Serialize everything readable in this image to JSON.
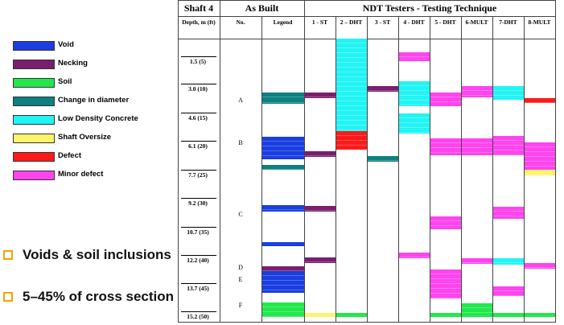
{
  "legend": [
    {
      "label": "Void",
      "color": "#1a3ee0"
    },
    {
      "label": "Necking",
      "color": "#7a1e6e"
    },
    {
      "label": "Soil",
      "color": "#22e84c"
    },
    {
      "label": "Change in diameter",
      "color": "#0e8080"
    },
    {
      "label": "Low Density Concrete",
      "color": "#22f4f4"
    },
    {
      "label": "Shaft Oversize",
      "color": "#fff36a"
    },
    {
      "label": "Defect",
      "color": "#ff1a1a"
    },
    {
      "label": "Minor defect",
      "color": "#ff44ee"
    }
  ],
  "bullets": [
    {
      "text": "Voids & soil inclusions"
    },
    {
      "text": "5–45% of cross section"
    }
  ],
  "table": {
    "shaft_header": "Shaft 4",
    "as_built_header": "As Built",
    "ndt_header": "NDT Testers - Testing Technique",
    "depth_header": "Depth, m (ft)",
    "no_header": "No.",
    "legend_header": "Legend",
    "tester_headers": [
      "1 - ST",
      "2 – DHT",
      "3 - ST",
      "4 - DHT",
      "5 - DHT",
      "6-MULT",
      "7-DHT",
      "8-MULT"
    ],
    "depths": [
      "1.5 (5)",
      "3.0 (10)",
      "4.6 (15)",
      "6.1 (20)",
      "7.7 (25)",
      "9.2 (30)",
      "10.7 (35)",
      "12.2 (40)",
      "13.7 (45)",
      "15.2 (50)"
    ],
    "sections": [
      {
        "label": "A",
        "depth_m": 3.4
      },
      {
        "label": "B",
        "depth_m": 5.7
      },
      {
        "label": "C",
        "depth_m": 9.6
      },
      {
        "label": "D",
        "depth_m": 12.5
      },
      {
        "label": "E",
        "depth_m": 13.2
      },
      {
        "label": "F",
        "depth_m": 14.6
      }
    ],
    "columns": [
      {
        "name": "as-built-legend",
        "segments": [
          {
            "from": 2.95,
            "to": 3.25,
            "kind": "change-diameter"
          },
          {
            "from": 3.25,
            "to": 3.55,
            "kind": "change-diameter"
          },
          {
            "from": 5.35,
            "to": 6.6,
            "kind": "void"
          },
          {
            "from": 6.9,
            "to": 7.15,
            "kind": "change-diameter"
          },
          {
            "from": 9.1,
            "to": 9.45,
            "kind": "void"
          },
          {
            "from": 11.1,
            "to": 11.35,
            "kind": "void"
          },
          {
            "from": 12.45,
            "to": 12.7,
            "kind": "necking"
          },
          {
            "from": 12.7,
            "to": 13.9,
            "kind": "void"
          },
          {
            "from": 14.4,
            "to": 15.2,
            "kind": "soil"
          }
        ]
      },
      {
        "name": "tester-1",
        "segments": [
          {
            "from": 2.95,
            "to": 3.25,
            "kind": "necking"
          },
          {
            "from": 6.15,
            "to": 6.45,
            "kind": "necking"
          },
          {
            "from": 9.15,
            "to": 9.45,
            "kind": "necking"
          },
          {
            "from": 11.95,
            "to": 12.25,
            "kind": "necking"
          },
          {
            "from": 15.0,
            "to": 15.2,
            "kind": "oversize"
          }
        ]
      },
      {
        "name": "tester-2",
        "segments": [
          {
            "from": 0.0,
            "to": 5.05,
            "kind": "low-density"
          },
          {
            "from": 5.05,
            "to": 6.05,
            "kind": "defect"
          },
          {
            "from": 15.0,
            "to": 15.2,
            "kind": "soil"
          }
        ]
      },
      {
        "name": "tester-3",
        "segments": [
          {
            "from": 2.6,
            "to": 2.9,
            "kind": "necking"
          },
          {
            "from": 6.4,
            "to": 6.7,
            "kind": "change-diameter"
          }
        ]
      },
      {
        "name": "tester-4",
        "segments": [
          {
            "from": 0.75,
            "to": 1.25,
            "kind": "minor"
          },
          {
            "from": 2.35,
            "to": 3.7,
            "kind": "low-density"
          },
          {
            "from": 4.1,
            "to": 5.2,
            "kind": "low-density"
          },
          {
            "from": 11.7,
            "to": 12.0,
            "kind": "minor"
          }
        ]
      },
      {
        "name": "tester-5",
        "segments": [
          {
            "from": 2.95,
            "to": 3.7,
            "kind": "minor"
          },
          {
            "from": 5.45,
            "to": 6.35,
            "kind": "minor"
          },
          {
            "from": 9.7,
            "to": 10.4,
            "kind": "minor"
          },
          {
            "from": 12.6,
            "to": 14.2,
            "kind": "minor"
          },
          {
            "from": 15.0,
            "to": 15.2,
            "kind": "soil"
          }
        ]
      },
      {
        "name": "tester-6",
        "segments": [
          {
            "from": 2.6,
            "to": 3.2,
            "kind": "minor"
          },
          {
            "from": 5.45,
            "to": 6.35,
            "kind": "minor"
          },
          {
            "from": 12.0,
            "to": 12.3,
            "kind": "minor"
          },
          {
            "from": 14.45,
            "to": 15.2,
            "kind": "soil"
          }
        ]
      },
      {
        "name": "tester-7",
        "segments": [
          {
            "from": 2.6,
            "to": 3.35,
            "kind": "low-density"
          },
          {
            "from": 5.3,
            "to": 6.35,
            "kind": "minor"
          },
          {
            "from": 9.2,
            "to": 9.85,
            "kind": "minor"
          },
          {
            "from": 12.0,
            "to": 12.35,
            "kind": "low-density"
          },
          {
            "from": 13.55,
            "to": 14.05,
            "kind": "minor"
          },
          {
            "from": 15.0,
            "to": 15.2,
            "kind": "soil"
          }
        ]
      },
      {
        "name": "tester-8",
        "segments": [
          {
            "from": 3.25,
            "to": 3.5,
            "kind": "defect"
          },
          {
            "from": 5.65,
            "to": 7.15,
            "kind": "minor"
          },
          {
            "from": 7.15,
            "to": 7.45,
            "kind": "oversize"
          },
          {
            "from": 12.25,
            "to": 12.55,
            "kind": "minor"
          },
          {
            "from": 15.0,
            "to": 15.2,
            "kind": "soil"
          }
        ]
      }
    ],
    "kind_colors": {
      "void": "#1a3ee0",
      "necking": "#7a1e6e",
      "soil": "#22e84c",
      "change-diameter": "#0e8080",
      "low-density": "#22f4f4",
      "oversize": "#fff36a",
      "defect": "#ff1a1a",
      "minor": "#ff44ee"
    }
  }
}
